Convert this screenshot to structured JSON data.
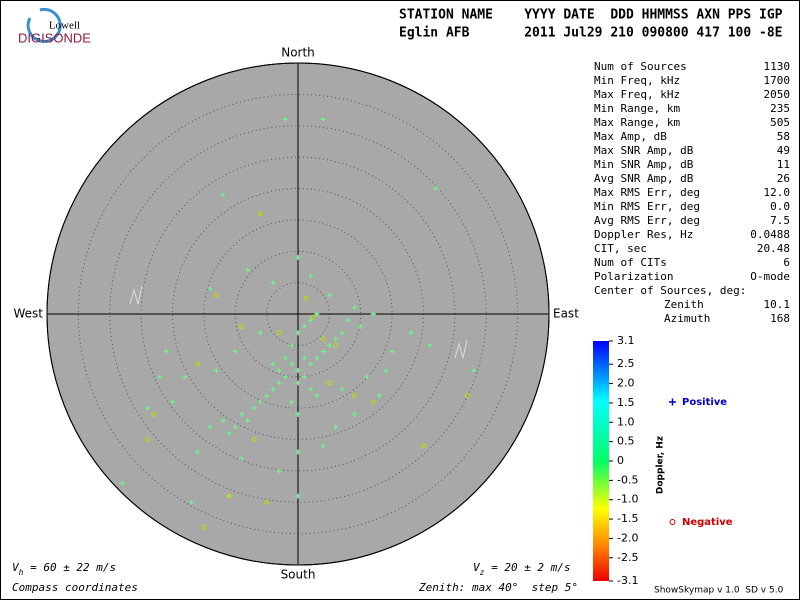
{
  "header": {
    "line1": "STATION NAME    YYYY DATE  DDD HHMMSS AXN PPS IGP",
    "line2": "Eglin AFB       2011 Jul29 210 090800 417 100 -8E"
  },
  "logo": {
    "top": "Lowell",
    "bottom": "DIGISONDE"
  },
  "stats": {
    "rows": [
      [
        "Num of Sources",
        "1130"
      ],
      [
        "Min Freq, kHz",
        "1700"
      ],
      [
        "Max Freq, kHz",
        "2050"
      ],
      [
        "Min Range, km",
        "235"
      ],
      [
        "Max Range, km",
        "505"
      ],
      [
        "Max Amp, dB",
        "58"
      ],
      [
        "Max SNR Amp, dB",
        "49"
      ],
      [
        "Min SNR Amp, dB",
        "11"
      ],
      [
        "Avg SNR Amp, dB",
        "26"
      ],
      [
        "Max RMS Err, deg",
        "12.0"
      ],
      [
        "Min RMS Err, deg",
        "0.0"
      ],
      [
        "Avg RMS Err, deg",
        "7.5"
      ],
      [
        "Doppler Res, Hz",
        "0.0488"
      ],
      [
        "CIT, sec",
        "20.48"
      ],
      [
        "Num of CITs",
        "6"
      ],
      [
        "Polarization",
        "O-mode"
      ],
      [
        "Center of Sources, deg:",
        ""
      ]
    ],
    "sub_rows": [
      [
        "Zenith",
        "10.1"
      ],
      [
        "Azimuth",
        "168"
      ]
    ]
  },
  "footer": {
    "vh": {
      "symbol": "V",
      "subscript": "h",
      "text": " = 60 ± 22 m/s"
    },
    "vz": {
      "symbol": "V",
      "subscript": "z",
      "text": " = 20 ± 2 m/s"
    },
    "coords": "Compass coordinates",
    "zenith": "Zenith: max 40°  step 5°",
    "version": "ShowSkymap v 1.0  SD v 5.0"
  },
  "chart_data": {
    "type": "scatter",
    "directions": {
      "north": "North",
      "east": "East",
      "south": "South",
      "west": "West"
    },
    "xlim": [
      -40,
      40
    ],
    "ylim": [
      -40,
      40
    ],
    "rticks": [
      5,
      10,
      15,
      20,
      25,
      30,
      35,
      40
    ],
    "colorbar": {
      "label": "Doppler, Hz",
      "clim": [
        -3.1,
        3.1
      ],
      "ticks": [
        3.1,
        2.5,
        {
          "value": 2,
          "label": "2.0"
        },
        1.5,
        {
          "value": 1,
          "label": "1.0"
        },
        0.5,
        0,
        -0.5,
        {
          "value": -1,
          "label": "-1.0"
        },
        -1.5,
        {
          "value": -2,
          "label": "-2.0"
        },
        -2.5,
        -3.1
      ]
    },
    "series": [
      {
        "name": "Positive",
        "color": "#0000cc",
        "marker": "plus",
        "marker_color": "#66ff88",
        "x": [
          -1,
          0,
          1,
          -2,
          -3,
          2,
          3,
          -4,
          -5,
          0,
          1,
          4,
          5,
          6,
          7,
          -6,
          -8,
          -10,
          -7,
          -2,
          -1,
          0,
          1,
          2,
          3,
          8,
          9,
          10,
          -3,
          -4,
          2,
          3,
          -1,
          0,
          -9,
          -11,
          -12,
          -14,
          -18,
          -20,
          -22,
          -24,
          -28,
          -17,
          -11,
          0,
          4,
          6,
          11,
          13,
          14,
          15,
          18,
          21,
          28,
          -2,
          4,
          22,
          -12,
          0,
          -4,
          2,
          5,
          -8,
          -14,
          -10,
          -6,
          12,
          0,
          -3,
          -16,
          -9,
          7,
          9,
          -13,
          -21
        ],
        "values": [
          -8,
          -9,
          -10,
          -10,
          -11,
          -8,
          -7,
          -12,
          -13,
          -11,
          -7,
          -6,
          -5,
          -4,
          -3,
          -14,
          -17,
          -18,
          -15,
          -7,
          -5,
          -3,
          -2,
          -1,
          0,
          -1,
          1,
          -2,
          -9,
          -8,
          -12,
          -13,
          -14,
          -16,
          -16,
          -19,
          -17,
          -18,
          -10,
          -14,
          -10,
          -15,
          -27,
          -30,
          -29,
          -29,
          -21,
          -18,
          -10,
          -13,
          -9,
          -6,
          -3,
          -5,
          -9,
          31,
          31,
          20,
          19,
          9,
          5,
          6,
          3,
          7,
          4,
          -6,
          -3,
          0,
          -22,
          -25,
          -22,
          -23,
          -12,
          -16,
          -9,
          -6
        ]
      },
      {
        "name": "Negative",
        "color": "#cc0000",
        "marker": "circle",
        "marker_color": "#b8e000",
        "x": [
          -6,
          -13,
          -9,
          -16,
          -24,
          -23,
          -7,
          -15,
          -11,
          4,
          6,
          9,
          12,
          27,
          20,
          -5,
          1.3,
          2.4,
          -3,
          5
        ],
        "values": [
          16,
          3,
          -2,
          -8,
          -20,
          -16,
          -20,
          -34,
          -29,
          -4,
          -5,
          -13,
          -14,
          -13,
          -21,
          -30,
          2.5,
          -0.5,
          -3,
          -11
        ]
      }
    ]
  }
}
